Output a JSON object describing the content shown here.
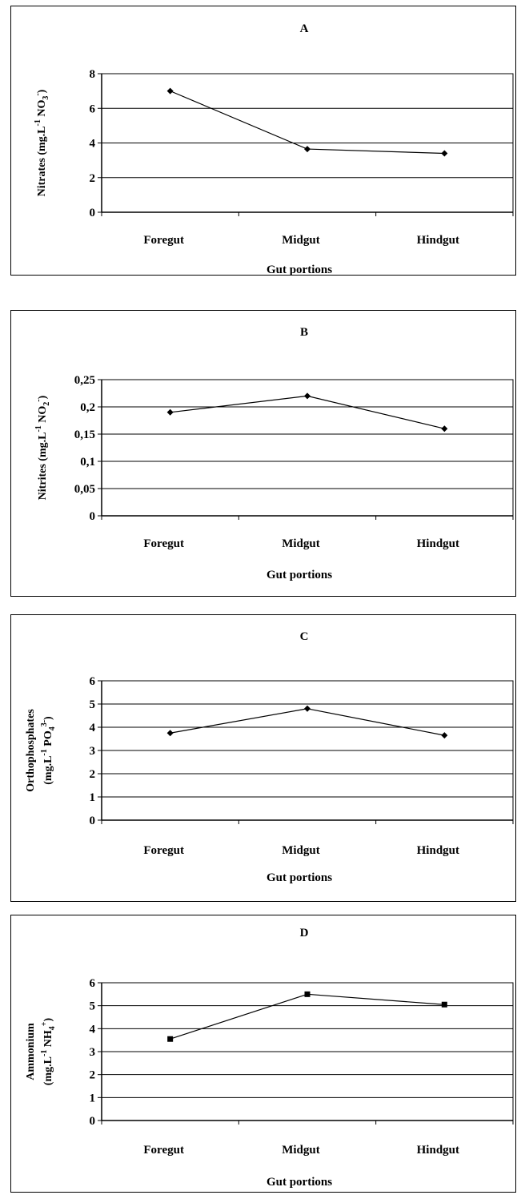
{
  "chart_data": [
    {
      "type": "line",
      "title": "A",
      "xlabel": "Gut portions",
      "ylabel_parts": [
        "Nitrates (mg.L",
        "-1",
        " NO",
        "3",
        "-",
        ")"
      ],
      "categories": [
        "Foregut",
        "Midgut",
        "Hindgut"
      ],
      "series": [
        {
          "values": [
            7,
            3.65,
            3.4
          ]
        }
      ],
      "y_ticks": [
        "0",
        "2",
        "4",
        "6",
        "8"
      ],
      "ylim": [
        0,
        8
      ],
      "grid": true,
      "marker": "diamond"
    },
    {
      "type": "line",
      "title": "B",
      "xlabel": "Gut portions",
      "ylabel_parts": [
        "Nitrites (mg.L",
        "-1",
        " NO",
        "2",
        "-",
        ")"
      ],
      "categories": [
        "Foregut",
        "Midgut",
        "Hindgut"
      ],
      "series": [
        {
          "values": [
            0.19,
            0.22,
            0.16
          ]
        }
      ],
      "y_ticks": [
        "0",
        "0,05",
        "0,1",
        "0,15",
        "0,2",
        "0,25"
      ],
      "ylim": [
        0,
        0.25
      ],
      "grid": true,
      "marker": "diamond"
    },
    {
      "type": "line",
      "title": "C",
      "xlabel": "Gut portions",
      "ylabel_line1": "Orthophosphates",
      "ylabel_parts": [
        "(mg.L",
        "-1",
        " PO",
        "4",
        "3-",
        ")"
      ],
      "categories": [
        "Foregut",
        "Midgut",
        "Hindgut"
      ],
      "series": [
        {
          "values": [
            3.75,
            4.8,
            3.65
          ]
        }
      ],
      "y_ticks": [
        "0",
        "1",
        "2",
        "3",
        "4",
        "5",
        "6"
      ],
      "ylim": [
        0,
        6
      ],
      "grid": true,
      "marker": "diamond"
    },
    {
      "type": "line",
      "title": "D",
      "xlabel": "Gut portions",
      "ylabel_line1": "Ammonium",
      "ylabel_parts": [
        "(mg.L",
        "-1",
        " NH",
        "4",
        "+",
        ")"
      ],
      "categories": [
        "Foregut",
        "Midgut",
        "Hindgut"
      ],
      "series": [
        {
          "values": [
            3.55,
            5.5,
            5.05
          ]
        }
      ],
      "y_ticks": [
        "0",
        "1",
        "2",
        "3",
        "4",
        "5",
        "6"
      ],
      "ylim": [
        0,
        6
      ],
      "grid": true,
      "marker": "square"
    }
  ],
  "colors": {
    "line": "#000000",
    "grid": "#000000",
    "background": "#ffffff"
  }
}
